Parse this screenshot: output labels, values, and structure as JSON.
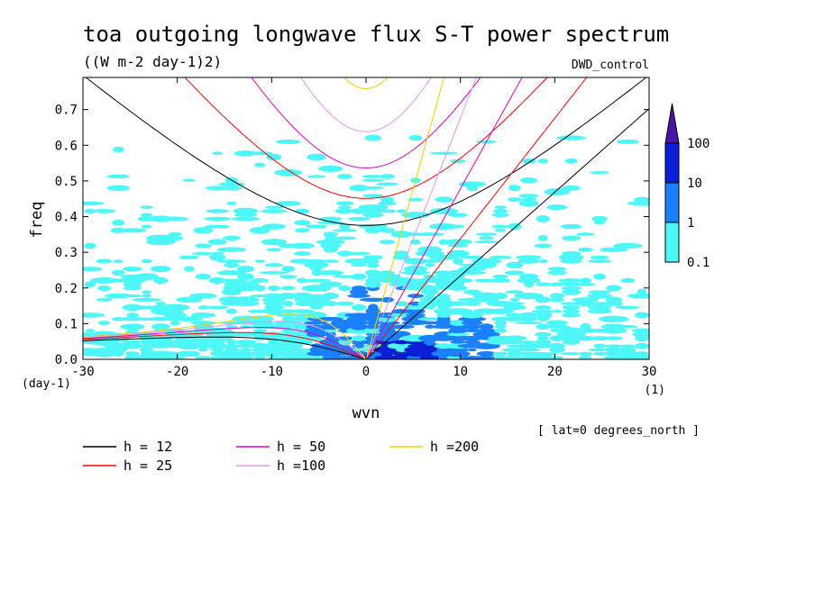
{
  "chart_data": {
    "type": "heatmap",
    "title": "toa outgoing longwave flux S-T power spectrum",
    "subtitle": "((W m-2 day-1)2)",
    "dataset_label": "DWD_control",
    "xlabel": "wvn",
    "ylabel": "freq",
    "x_unit_label": "(1)",
    "y_unit_label": "(day-1)",
    "annotation": "[ lat=0 degrees_north ]",
    "xlim": [
      -30,
      30
    ],
    "ylim": [
      0,
      0.79
    ],
    "x_ticks": [
      {
        "value": -30,
        "label": "-30"
      },
      {
        "value": -20,
        "label": "-20"
      },
      {
        "value": -10,
        "label": "-10"
      },
      {
        "value": 0,
        "label": "0"
      },
      {
        "value": 10,
        "label": "10"
      },
      {
        "value": 20,
        "label": "20"
      },
      {
        "value": 30,
        "label": "30"
      }
    ],
    "y_ticks": [
      {
        "value": 0.0,
        "label": "0.0"
      },
      {
        "value": 0.1,
        "label": "0.1"
      },
      {
        "value": 0.2,
        "label": "0.2"
      },
      {
        "value": 0.3,
        "label": "0.3"
      },
      {
        "value": 0.4,
        "label": "0.4"
      },
      {
        "value": 0.5,
        "label": "0.5"
      },
      {
        "value": 0.6,
        "label": "0.6"
      },
      {
        "value": 0.7,
        "label": "0.7"
      }
    ],
    "colorbar": {
      "levels": [
        {
          "label": "0.1",
          "min": 0.1,
          "max": 1,
          "color": "#4ef7f7"
        },
        {
          "label": "1",
          "min": 1,
          "max": 10,
          "color": "#1a80ff"
        },
        {
          "label": "10",
          "min": 10,
          "max": 100,
          "color": "#0a1ed6"
        },
        {
          "label": "100",
          "min": 100,
          "max": null,
          "color": "#4a14a6"
        }
      ]
    },
    "legend": [
      {
        "label": "h = 12",
        "h": 12,
        "color": "#000000"
      },
      {
        "label": "h = 25",
        "h": 25,
        "color": "#ff0000"
      },
      {
        "label": "h = 50",
        "h": 50,
        "color": "#d800c8"
      },
      {
        "label": "h =100",
        "h": 100,
        "color": "#e098e8"
      },
      {
        "label": "h =200",
        "h": 200,
        "color": "#f0d000"
      }
    ],
    "power_regions": [
      {
        "level": 1,
        "wvn": [
          -6,
          14
        ],
        "freq": [
          0.0,
          0.12
        ]
      },
      {
        "level": 1,
        "wvn": [
          -2,
          6
        ],
        "freq": [
          0.12,
          0.2
        ]
      },
      {
        "level": 2,
        "wvn": [
          1,
          8
        ],
        "freq": [
          0.0,
          0.05
        ]
      },
      {
        "level": 0,
        "wvn": [
          -30,
          30
        ],
        "freq": [
          0.0,
          0.55
        ]
      }
    ]
  }
}
